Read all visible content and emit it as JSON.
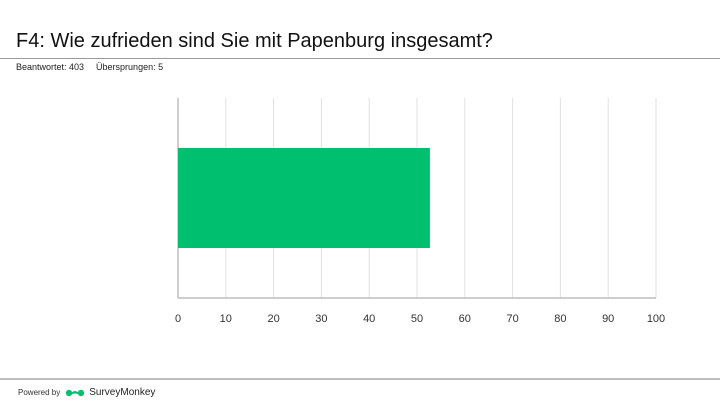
{
  "header": {
    "title": "F4: Wie zufrieden sind Sie mit Papenburg insgesamt?",
    "answered_label": "Beantwortet: 403",
    "skipped_label": "Übersprungen: 5"
  },
  "footer": {
    "powered_label": "Powered by",
    "brand_name": "SurveyMonkey",
    "brand_icon": "surveymonkey-logo-icon",
    "brand_color": "#00bf6f"
  },
  "chart_data": {
    "type": "bar",
    "orientation": "horizontal",
    "categories": [
      ""
    ],
    "values": [
      52.7
    ],
    "xlim": [
      0,
      100
    ],
    "xticks": [
      0,
      10,
      20,
      30,
      40,
      50,
      60,
      70,
      80,
      90,
      100
    ],
    "grid": true,
    "bar_color": "#00bf6f"
  }
}
